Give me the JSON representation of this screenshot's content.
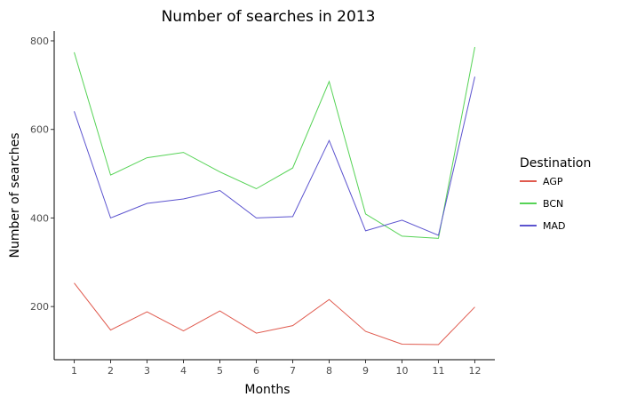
{
  "chart_data": {
    "type": "line",
    "title": "Number of searches in 2013",
    "xlabel": "Months",
    "ylabel": "Number of searches",
    "x": [
      1,
      2,
      3,
      4,
      5,
      6,
      7,
      8,
      9,
      10,
      11,
      12
    ],
    "x_tick_labels": [
      "1",
      "2",
      "3",
      "4",
      "5",
      "6",
      "7",
      "8",
      "9",
      "10",
      "11",
      "12"
    ],
    "y_ticks": [
      200,
      400,
      600,
      800
    ],
    "y_tick_labels": [
      "200",
      "400",
      "600",
      "800"
    ],
    "xlim": [
      0.45,
      12.55
    ],
    "ylim": [
      80,
      822
    ],
    "grid": false,
    "legend": {
      "title": "Destination",
      "position": "right"
    },
    "series": [
      {
        "name": "AGP",
        "color": "#e05a4e",
        "values": [
          253,
          147,
          188,
          145,
          190,
          140,
          157,
          216,
          144,
          115,
          114,
          199
        ]
      },
      {
        "name": "BCN",
        "color": "#56d356",
        "values": [
          774,
          497,
          536,
          548,
          504,
          466,
          513,
          708,
          409,
          359,
          354,
          786
        ]
      },
      {
        "name": "MAD",
        "color": "#5c54cf",
        "values": [
          641,
          400,
          433,
          443,
          462,
          400,
          403,
          575,
          371,
          395,
          361,
          719
        ]
      }
    ]
  }
}
